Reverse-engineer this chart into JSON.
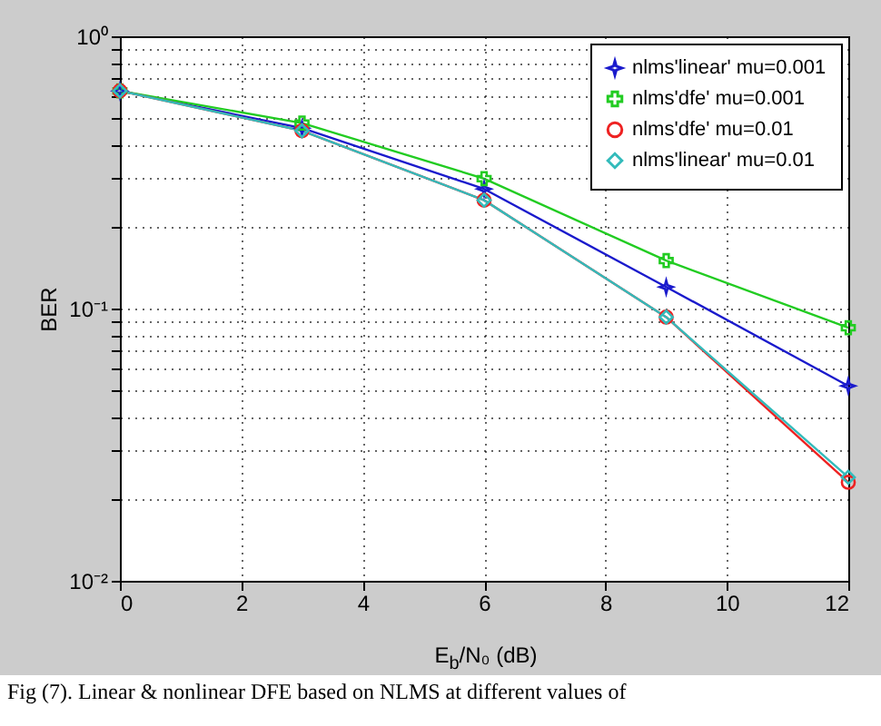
{
  "chart_data": {
    "type": "line",
    "xlabel": "E$_{b}$/N₀ (dB)",
    "ylabel": "BER",
    "x": [
      0,
      3,
      6,
      9,
      12
    ],
    "series": [
      {
        "name": "nlms'linear' mu=0.001",
        "color": "#1a1acc",
        "marker": "star",
        "values": [
          0.63,
          0.46,
          0.275,
          0.12,
          0.052
        ]
      },
      {
        "name": "nlms'dfe' mu=0.001",
        "color": "#22cc22",
        "marker": "cross",
        "values": [
          0.63,
          0.48,
          0.3,
          0.15,
          0.085
        ]
      },
      {
        "name": "nlms'dfe' mu=0.01",
        "color": "#ee2222",
        "marker": "circle",
        "values": [
          0.63,
          0.45,
          0.25,
          0.093,
          0.023
        ]
      },
      {
        "name": "nlms'linear' mu=0.01",
        "color": "#33bbbb",
        "marker": "diamond",
        "values": [
          0.63,
          0.45,
          0.25,
          0.093,
          0.024
        ]
      }
    ],
    "xlim": [
      0,
      12
    ],
    "xticks": [
      0,
      2,
      4,
      6,
      8,
      10,
      12
    ],
    "ylim": [
      0.01,
      1
    ],
    "yticks": [
      {
        "value": 0.01,
        "label": "10⁻²"
      },
      {
        "value": 0.02,
        "label": null
      },
      {
        "value": 0.03,
        "label": null
      },
      {
        "value": 0.04,
        "label": null
      },
      {
        "value": 0.05,
        "label": null
      },
      {
        "value": 0.06,
        "label": null
      },
      {
        "value": 0.07,
        "label": null
      },
      {
        "value": 0.08,
        "label": null
      },
      {
        "value": 0.09,
        "label": null
      },
      {
        "value": 0.1,
        "label": "10⁻¹"
      },
      {
        "value": 0.2,
        "label": null
      },
      {
        "value": 0.3,
        "label": null
      },
      {
        "value": 0.4,
        "label": null
      },
      {
        "value": 0.5,
        "label": null
      },
      {
        "value": 0.6,
        "label": null
      },
      {
        "value": 0.7,
        "label": null
      },
      {
        "value": 0.8,
        "label": null
      },
      {
        "value": 0.9,
        "label": null
      },
      {
        "value": 1,
        "label": "10⁰"
      }
    ],
    "log": "y",
    "grid": true,
    "legend": "top right",
    "annotations": [
      "Fig (7). Linear & nonlinear DFE based on NLMS at different values of"
    ]
  }
}
